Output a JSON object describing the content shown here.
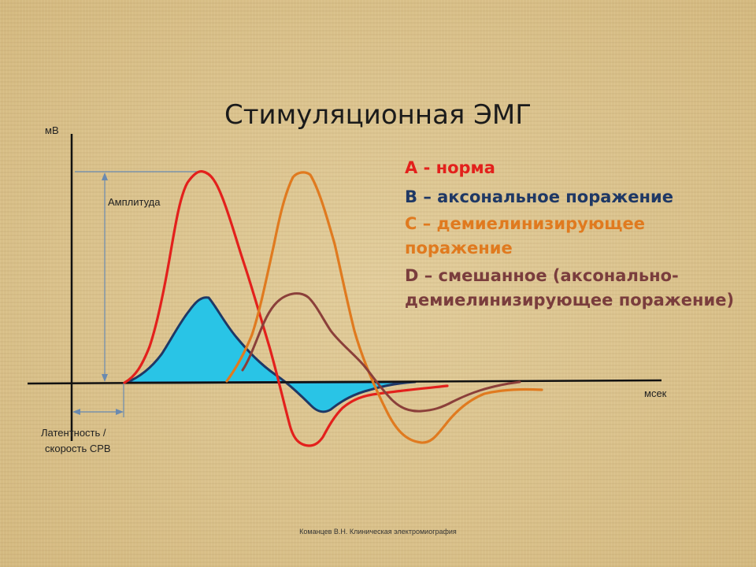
{
  "title": "Стимуляционная ЭМГ",
  "legend": {
    "a": "A - норма",
    "b": "B – аксональное поражение",
    "c_line1": "C – демиелинизирующее",
    "c_line2": "поражение",
    "d_line1": "D – смешанное (аксонально-",
    "d_line2": "демиелинизирующее поражение)"
  },
  "axes": {
    "y_label": "мВ",
    "x_label": "мсек"
  },
  "annotations": {
    "amplitude": "Амплитуда",
    "latency_line1": "Латентность /",
    "latency_line2": "скорость СРВ"
  },
  "footer": "Команцев В.Н. Клиническая электромиография",
  "colors": {
    "normal": "#e3201c",
    "axonal": "#1f3865",
    "demyelinating": "#e07a1f",
    "mixed": "#8b3f3a",
    "axonal_fill": "#29c4e6",
    "annotation_lines": "#6a8ab0"
  }
}
